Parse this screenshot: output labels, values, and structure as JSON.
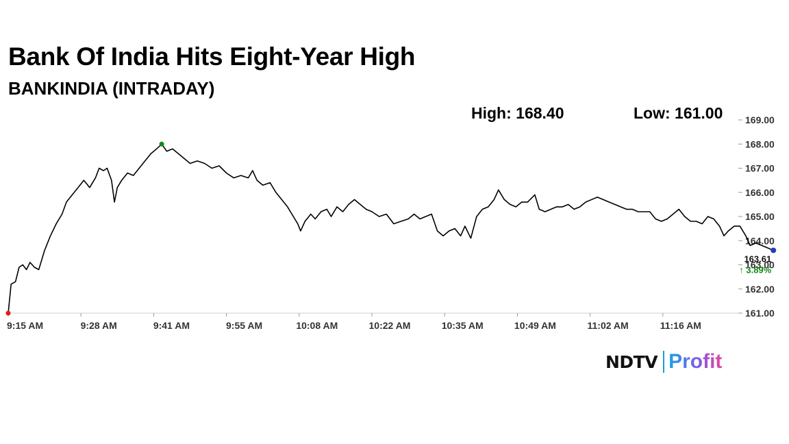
{
  "header": {
    "title": "Bank Of India Hits Eight-Year High",
    "subtitle": "BANKINDIA (INTRADAY)",
    "high_text": "High: 168.40",
    "low_text": "Low: 161.00"
  },
  "chart_data": {
    "type": "line",
    "ylim": [
      161,
      169
    ],
    "yticks": [
      "169.00",
      "168.00",
      "167.00",
      "166.00",
      "165.00",
      "164.00",
      "163.00",
      "162.00",
      "161.00"
    ],
    "xlabels": [
      "9:15 AM",
      "9:28 AM",
      "9:41 AM",
      "9:55 AM",
      "10:08 AM",
      "10:22 AM",
      "10:35 AM",
      "10:49 AM",
      "11:02 AM",
      "11:16 AM"
    ],
    "series": [
      {
        "color": "#000000",
        "points": [
          [
            0,
            161.0
          ],
          [
            0.4,
            162.2
          ],
          [
            1.0,
            162.3
          ],
          [
            1.5,
            162.9
          ],
          [
            2.0,
            163.0
          ],
          [
            2.5,
            162.8
          ],
          [
            3.0,
            163.1
          ],
          [
            3.6,
            162.9
          ],
          [
            4.2,
            162.8
          ],
          [
            5.0,
            163.6
          ],
          [
            5.8,
            164.2
          ],
          [
            6.6,
            164.7
          ],
          [
            7.4,
            165.1
          ],
          [
            8.0,
            165.6
          ],
          [
            8.8,
            165.9
          ],
          [
            9.6,
            166.2
          ],
          [
            10.4,
            166.5
          ],
          [
            11.2,
            166.2
          ],
          [
            12.0,
            166.6
          ],
          [
            12.5,
            167.0
          ],
          [
            13.1,
            166.9
          ],
          [
            13.6,
            167.0
          ],
          [
            14.2,
            166.5
          ],
          [
            14.6,
            165.6
          ],
          [
            15.0,
            166.2
          ],
          [
            15.6,
            166.5
          ],
          [
            16.4,
            166.8
          ],
          [
            17.2,
            166.7
          ],
          [
            18.0,
            167.0
          ],
          [
            18.8,
            167.3
          ],
          [
            19.6,
            167.6
          ],
          [
            20.4,
            167.8
          ],
          [
            21.1,
            168.0
          ],
          [
            21.8,
            167.7
          ],
          [
            22.6,
            167.8
          ],
          [
            23.4,
            167.6
          ],
          [
            24.2,
            167.4
          ],
          [
            25.0,
            167.2
          ],
          [
            26.0,
            167.3
          ],
          [
            27.0,
            167.2
          ],
          [
            28.0,
            167.0
          ],
          [
            29.0,
            167.1
          ],
          [
            30.0,
            166.8
          ],
          [
            31.0,
            166.6
          ],
          [
            32.0,
            166.7
          ],
          [
            33.0,
            166.6
          ],
          [
            33.6,
            166.9
          ],
          [
            34.2,
            166.5
          ],
          [
            35.0,
            166.3
          ],
          [
            36.0,
            166.4
          ],
          [
            36.8,
            166.0
          ],
          [
            37.6,
            165.7
          ],
          [
            38.4,
            165.4
          ],
          [
            39.2,
            165.0
          ],
          [
            39.8,
            164.7
          ],
          [
            40.2,
            164.4
          ],
          [
            40.8,
            164.8
          ],
          [
            41.6,
            165.1
          ],
          [
            42.2,
            164.9
          ],
          [
            43.0,
            165.2
          ],
          [
            43.8,
            165.3
          ],
          [
            44.4,
            165.0
          ],
          [
            45.2,
            165.4
          ],
          [
            46.0,
            165.2
          ],
          [
            46.8,
            165.5
          ],
          [
            47.6,
            165.7
          ],
          [
            48.4,
            165.5
          ],
          [
            49.2,
            165.3
          ],
          [
            50.0,
            165.2
          ],
          [
            51.0,
            165.0
          ],
          [
            52.0,
            165.1
          ],
          [
            53.0,
            164.7
          ],
          [
            54.0,
            164.8
          ],
          [
            55.0,
            164.9
          ],
          [
            55.8,
            165.1
          ],
          [
            56.6,
            164.9
          ],
          [
            57.4,
            165.0
          ],
          [
            58.2,
            165.1
          ],
          [
            59.0,
            164.4
          ],
          [
            59.8,
            164.2
          ],
          [
            60.6,
            164.4
          ],
          [
            61.4,
            164.5
          ],
          [
            62.2,
            164.2
          ],
          [
            62.8,
            164.6
          ],
          [
            63.6,
            164.1
          ],
          [
            64.4,
            165.0
          ],
          [
            65.2,
            165.3
          ],
          [
            66.0,
            165.4
          ],
          [
            66.8,
            165.7
          ],
          [
            67.4,
            166.1
          ],
          [
            68.2,
            165.7
          ],
          [
            69.0,
            165.5
          ],
          [
            69.8,
            165.4
          ],
          [
            70.6,
            165.6
          ],
          [
            71.4,
            165.6
          ],
          [
            72.4,
            165.9
          ],
          [
            73.0,
            165.3
          ],
          [
            73.8,
            165.2
          ],
          [
            74.6,
            165.3
          ],
          [
            75.4,
            165.4
          ],
          [
            76.2,
            165.4
          ],
          [
            77.0,
            165.5
          ],
          [
            77.8,
            165.3
          ],
          [
            78.6,
            165.4
          ],
          [
            79.4,
            165.6
          ],
          [
            80.2,
            165.7
          ],
          [
            81.0,
            165.8
          ],
          [
            81.8,
            165.7
          ],
          [
            82.6,
            165.6
          ],
          [
            83.4,
            165.5
          ],
          [
            84.2,
            165.4
          ],
          [
            85.0,
            165.3
          ],
          [
            85.8,
            165.3
          ],
          [
            86.6,
            165.2
          ],
          [
            87.4,
            165.2
          ],
          [
            88.2,
            165.2
          ],
          [
            89.0,
            164.9
          ],
          [
            89.8,
            164.8
          ],
          [
            90.6,
            164.9
          ],
          [
            91.4,
            165.1
          ],
          [
            92.2,
            165.3
          ],
          [
            93.0,
            165.0
          ],
          [
            93.8,
            164.8
          ],
          [
            94.6,
            164.8
          ],
          [
            95.4,
            164.7
          ],
          [
            96.2,
            165.0
          ],
          [
            97.0,
            164.9
          ],
          [
            97.8,
            164.6
          ],
          [
            98.4,
            164.2
          ],
          [
            99.0,
            164.4
          ],
          [
            99.8,
            164.6
          ],
          [
            100.6,
            164.6
          ],
          [
            101.4,
            164.2
          ],
          [
            102.0,
            163.8
          ],
          [
            102.8,
            163.9
          ],
          [
            103.6,
            163.8
          ],
          [
            104.4,
            163.7
          ],
          [
            105.2,
            163.6
          ]
        ]
      }
    ],
    "markers": {
      "start_color": "#e11b1b",
      "high_color": "#138a13",
      "last_color": "#1e3fb5"
    },
    "last_price": "163.61",
    "change_text": "↑ 3.89%",
    "change_color": "#138a13"
  },
  "logo": {
    "brand": "NDTV",
    "product": "Profit"
  }
}
